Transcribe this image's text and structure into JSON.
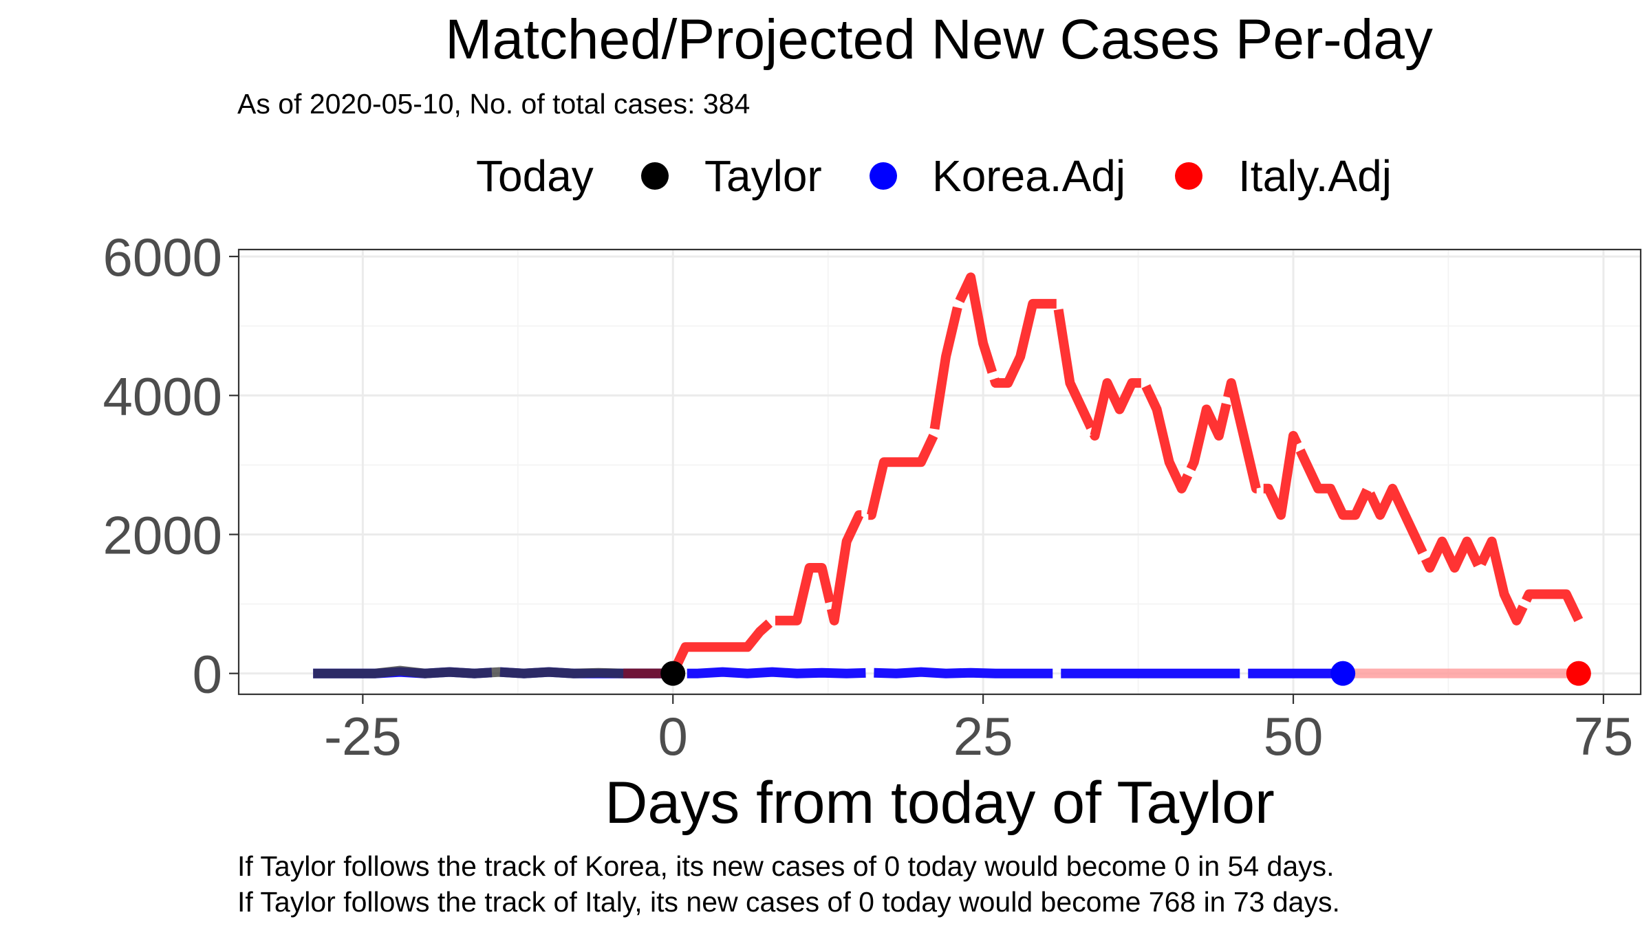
{
  "chart_data": {
    "type": "line",
    "title": "Matched/Projected New Cases Per-day",
    "subtitle": "As of 2020-05-10, No. of total cases: 384",
    "xlabel": "Days from today of Taylor",
    "ylabel": "",
    "xlim": [
      -35,
      78
    ],
    "ylim": [
      -300,
      6100
    ],
    "x_ticks": [
      -25,
      0,
      25,
      50,
      75
    ],
    "x_tick_labels": [
      "-25",
      "0",
      "25",
      "50",
      "75"
    ],
    "y_ticks": [
      0,
      2000,
      4000,
      6000
    ],
    "y_tick_labels": [
      "0",
      "2000",
      "4000",
      "6000"
    ],
    "grid": true,
    "legend": {
      "title": "Today",
      "position": "top",
      "entries": [
        {
          "label": "Taylor",
          "color": "#000000"
        },
        {
          "label": "Korea.Adj",
          "color": "#0000ff"
        },
        {
          "label": "Italy.Adj",
          "color": "#ff0000"
        }
      ]
    },
    "series": [
      {
        "name": "Taylor",
        "color": "#000000",
        "line_color": "#333333",
        "x": [
          -29,
          -24,
          -22,
          -20,
          -18,
          -16,
          -14,
          -12,
          -10,
          -8,
          -6,
          -4,
          -2,
          0
        ],
        "y": [
          0,
          0,
          40,
          0,
          20,
          0,
          20,
          0,
          20,
          0,
          10,
          0,
          0,
          0
        ],
        "today_marker": {
          "x": 0,
          "y": 0
        }
      },
      {
        "name": "Korea.Adj",
        "color": "#0000ff",
        "line_color": "#1a10ff",
        "x": [
          -29,
          -24,
          -22,
          -20,
          -18,
          -16,
          -14,
          -12,
          -10,
          -8,
          -6,
          -4,
          -2,
          0,
          2,
          4,
          6,
          8,
          10,
          12,
          14,
          16,
          18,
          20,
          22,
          24,
          26,
          28,
          30,
          32,
          34,
          36,
          38,
          40,
          42,
          44,
          46,
          48,
          50,
          52,
          54
        ],
        "y": [
          0,
          0,
          20,
          0,
          20,
          0,
          20,
          0,
          20,
          0,
          0,
          0,
          0,
          0,
          0,
          20,
          0,
          20,
          0,
          10,
          0,
          10,
          0,
          20,
          0,
          10,
          0,
          0,
          0,
          0,
          0,
          0,
          0,
          0,
          0,
          0,
          0,
          0,
          0,
          0,
          0
        ],
        "end_marker": {
          "x": 54,
          "y": 0
        }
      },
      {
        "name": "Italy.Adj",
        "color": "#ff0000",
        "line_color": "#ff3333",
        "x": [
          -4,
          -2,
          0,
          1,
          2,
          4,
          6,
          7,
          8,
          10,
          11,
          12,
          13,
          14,
          15,
          16,
          17,
          18,
          19,
          20,
          21,
          22,
          23,
          24,
          25,
          26,
          27,
          28,
          29,
          30,
          31,
          32,
          33,
          34,
          35,
          36,
          37,
          38,
          39,
          40,
          41,
          42,
          43,
          44,
          45,
          46,
          47,
          48,
          49,
          50,
          51,
          52,
          53,
          54,
          55,
          56,
          57,
          58,
          59,
          60,
          61,
          62,
          63,
          64,
          65,
          66,
          67,
          68,
          69,
          70,
          71,
          72,
          73
        ],
        "y": [
          0,
          0,
          0,
          380,
          380,
          380,
          380,
          600,
          760,
          760,
          1520,
          1520,
          760,
          1900,
          2280,
          2280,
          3040,
          3040,
          3040,
          3040,
          3420,
          4560,
          5320,
          5700,
          4750,
          4180,
          4180,
          4560,
          5320,
          5320,
          5320,
          4180,
          3800,
          3420,
          4180,
          3800,
          4180,
          4180,
          3800,
          3040,
          2660,
          3040,
          3800,
          3420,
          4180,
          3420,
          2660,
          2660,
          2280,
          3420,
          3040,
          2660,
          2660,
          2280,
          2280,
          2660,
          2280,
          2660,
          2280,
          1900,
          1520,
          1900,
          1520,
          1900,
          1520,
          1900,
          1140,
          760,
          1140,
          1140,
          1140,
          1140,
          768
        ],
        "today_value": 0,
        "projected_end": {
          "x": 73,
          "y": 768
        },
        "end_marker": {
          "x": 73,
          "y": 0
        }
      }
    ],
    "captions": [
      "If Taylor follows the track of Korea, its new cases of 0 today would become 0 in 54 days.",
      "If Taylor follows the track of Italy, its new cases of 0 today would become 768 in 73 days."
    ]
  }
}
